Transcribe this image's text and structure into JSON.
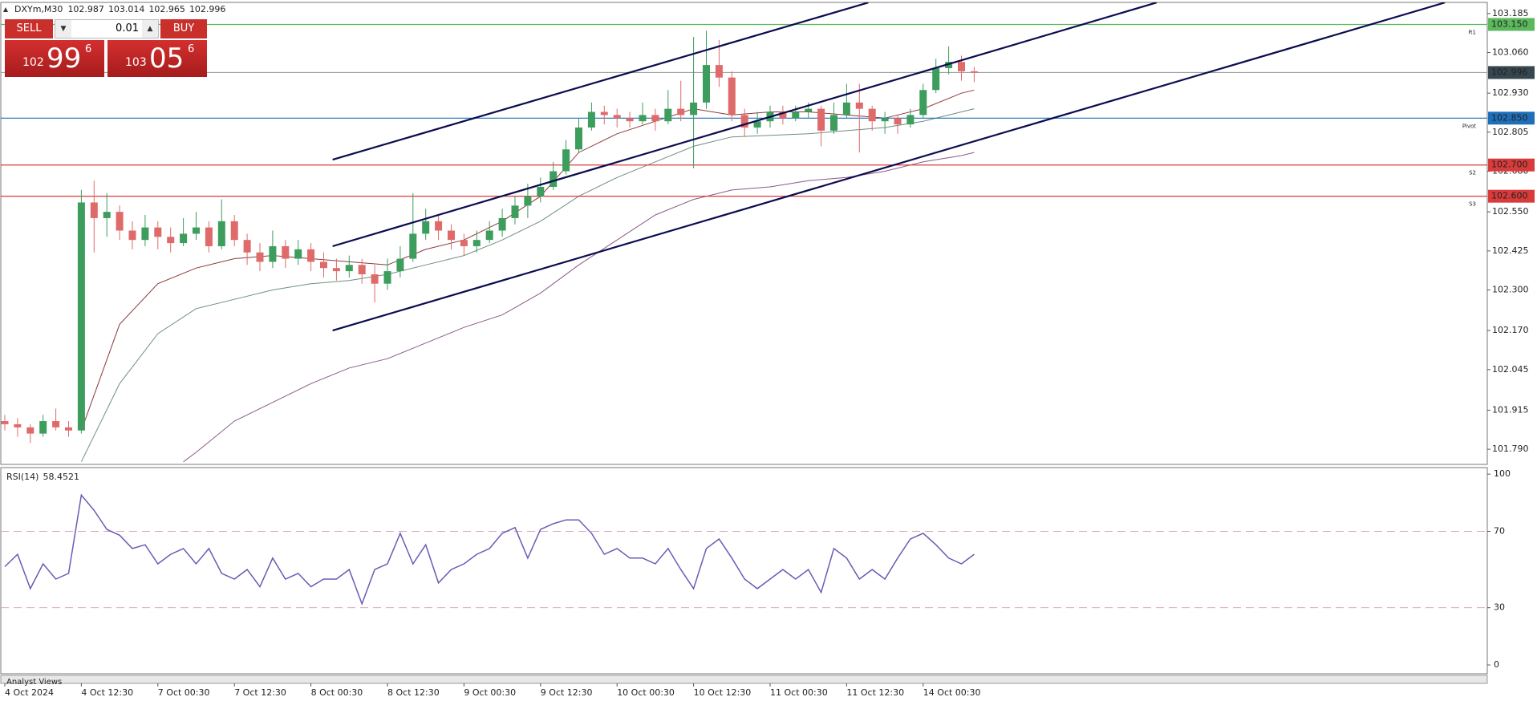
{
  "chart_data": [
    {
      "type": "candlestick",
      "title": "DXYm,M30",
      "header_values": [
        102.987,
        103.014,
        102.965,
        102.996
      ],
      "categories": [
        "4 Oct 2024",
        null,
        null,
        null,
        null,
        null,
        "4 Oct 12:30",
        null,
        null,
        null,
        null,
        null,
        "7 Oct 00:30",
        null,
        null,
        null,
        null,
        null,
        "7 Oct 12:30",
        null,
        null,
        null,
        null,
        null,
        "8 Oct 00:30",
        null,
        null,
        null,
        null,
        null,
        "8 Oct 12:30",
        null,
        null,
        null,
        null,
        null,
        "9 Oct 00:30",
        null,
        null,
        null,
        null,
        null,
        "9 Oct 12:30",
        null,
        null,
        null,
        null,
        null,
        "10 Oct 00:30",
        null,
        null,
        null,
        null,
        null,
        "10 Oct 12:30",
        null,
        null,
        null,
        null,
        null,
        "11 Oct 00:30",
        null,
        null,
        null,
        null,
        null,
        "11 Oct 12:30",
        null,
        null,
        null,
        null,
        null,
        "14 Oct 00:30",
        null,
        null,
        null,
        null
      ],
      "candles": [
        [
          101.88,
          101.9,
          101.85,
          101.87
        ],
        [
          101.87,
          101.89,
          101.83,
          101.86
        ],
        [
          101.86,
          101.87,
          101.81,
          101.84
        ],
        [
          101.84,
          101.9,
          101.83,
          101.88
        ],
        [
          101.88,
          101.92,
          101.85,
          101.86
        ],
        [
          101.86,
          101.88,
          101.83,
          101.85
        ],
        [
          101.85,
          102.62,
          101.84,
          102.58
        ],
        [
          102.58,
          102.65,
          102.42,
          102.53
        ],
        [
          102.53,
          102.61,
          102.47,
          102.55
        ],
        [
          102.55,
          102.57,
          102.46,
          102.49
        ],
        [
          102.49,
          102.52,
          102.43,
          102.46
        ],
        [
          102.46,
          102.54,
          102.44,
          102.5
        ],
        [
          102.5,
          102.52,
          102.43,
          102.47
        ],
        [
          102.47,
          102.5,
          102.42,
          102.45
        ],
        [
          102.45,
          102.53,
          102.44,
          102.48
        ],
        [
          102.48,
          102.55,
          102.46,
          102.5
        ],
        [
          102.5,
          102.52,
          102.42,
          102.44
        ],
        [
          102.44,
          102.59,
          102.43,
          102.52
        ],
        [
          102.52,
          102.54,
          102.44,
          102.46
        ],
        [
          102.46,
          102.48,
          102.38,
          102.42
        ],
        [
          102.42,
          102.45,
          102.36,
          102.39
        ],
        [
          102.39,
          102.49,
          102.37,
          102.44
        ],
        [
          102.44,
          102.46,
          102.37,
          102.4
        ],
        [
          102.4,
          102.46,
          102.38,
          102.43
        ],
        [
          102.43,
          102.45,
          102.36,
          102.39
        ],
        [
          102.39,
          102.42,
          102.34,
          102.37
        ],
        [
          102.37,
          102.4,
          102.33,
          102.36
        ],
        [
          102.36,
          102.41,
          102.34,
          102.38
        ],
        [
          102.38,
          102.4,
          102.32,
          102.35
        ],
        [
          102.35,
          102.38,
          102.26,
          102.32
        ],
        [
          102.32,
          102.4,
          102.3,
          102.36
        ],
        [
          102.36,
          102.44,
          102.34,
          102.4
        ],
        [
          102.4,
          102.61,
          102.39,
          102.48
        ],
        [
          102.48,
          102.56,
          102.46,
          102.52
        ],
        [
          102.52,
          102.54,
          102.46,
          102.49
        ],
        [
          102.49,
          102.51,
          102.43,
          102.46
        ],
        [
          102.46,
          102.48,
          102.41,
          102.44
        ],
        [
          102.44,
          102.49,
          102.42,
          102.46
        ],
        [
          102.46,
          102.52,
          102.45,
          102.49
        ],
        [
          102.49,
          102.56,
          102.47,
          102.53
        ],
        [
          102.53,
          102.6,
          102.51,
          102.57
        ],
        [
          102.57,
          102.64,
          102.53,
          102.6
        ],
        [
          102.6,
          102.66,
          102.58,
          102.63
        ],
        [
          102.63,
          102.71,
          102.62,
          102.68
        ],
        [
          102.68,
          102.78,
          102.67,
          102.75
        ],
        [
          102.75,
          102.85,
          102.74,
          102.82
        ],
        [
          102.82,
          102.9,
          102.81,
          102.87
        ],
        [
          102.87,
          102.89,
          102.83,
          102.86
        ],
        [
          102.86,
          102.88,
          102.82,
          102.85
        ],
        [
          102.85,
          102.87,
          102.82,
          102.84
        ],
        [
          102.84,
          102.9,
          102.83,
          102.86
        ],
        [
          102.86,
          102.88,
          102.81,
          102.84
        ],
        [
          102.84,
          102.94,
          102.83,
          102.88
        ],
        [
          102.88,
          102.97,
          102.84,
          102.86
        ],
        [
          102.86,
          103.11,
          102.69,
          102.9
        ],
        [
          102.9,
          103.13,
          102.88,
          103.02
        ],
        [
          103.02,
          103.1,
          102.95,
          102.98
        ],
        [
          102.98,
          103.0,
          102.84,
          102.86
        ],
        [
          102.86,
          102.88,
          102.79,
          102.82
        ],
        [
          102.82,
          102.87,
          102.8,
          102.84
        ],
        [
          102.84,
          102.89,
          102.82,
          102.87
        ],
        [
          102.87,
          102.89,
          102.83,
          102.85
        ],
        [
          102.85,
          102.89,
          102.84,
          102.87
        ],
        [
          102.87,
          102.9,
          102.85,
          102.88
        ],
        [
          102.88,
          102.89,
          102.76,
          102.81
        ],
        [
          102.81,
          102.9,
          102.8,
          102.86
        ],
        [
          102.86,
          102.96,
          102.85,
          102.9
        ],
        [
          102.9,
          102.96,
          102.74,
          102.88
        ],
        [
          102.88,
          102.89,
          102.81,
          102.84
        ],
        [
          102.84,
          102.87,
          102.8,
          102.85
        ],
        [
          102.85,
          102.86,
          102.8,
          102.83
        ],
        [
          102.83,
          102.88,
          102.82,
          102.86
        ],
        [
          102.86,
          102.96,
          102.85,
          102.94
        ],
        [
          102.94,
          103.04,
          102.93,
          103.01
        ],
        [
          103.01,
          103.08,
          102.99,
          103.03
        ],
        [
          103.03,
          103.05,
          102.97,
          103.0
        ],
        [
          103.0,
          103.014,
          102.965,
          102.996
        ]
      ],
      "up_color": "#3c9d5d",
      "down_color": "#df6a6a",
      "ylim": [
        101.744,
        103.218
      ],
      "yticks": [
        103.185,
        {
          "value": 103.06,
          "label": "103.060"
        },
        {
          "value": 102.93,
          "label": "102.930"
        },
        102.805,
        {
          "value": 102.68,
          "label": "102.680"
        },
        {
          "value": 102.55,
          "label": "102.550"
        },
        102.425,
        {
          "value": 102.3,
          "label": "102.300"
        },
        {
          "value": 102.17,
          "label": "102.170"
        },
        102.045,
        101.915,
        {
          "value": 101.79,
          "label": "101.790"
        }
      ],
      "series": [
        {
          "color": "#8b3a3a",
          "x": [
            6,
            9,
            12,
            15,
            18,
            21,
            24,
            27,
            30,
            33,
            36,
            39,
            42,
            45,
            48,
            51,
            54,
            57,
            60,
            63,
            66,
            69,
            72,
            75,
            76
          ],
          "values": [
            101.85,
            102.19,
            102.32,
            102.37,
            102.4,
            102.41,
            102.4,
            102.39,
            102.38,
            102.43,
            102.46,
            102.52,
            102.6,
            102.74,
            102.8,
            102.84,
            102.88,
            102.86,
            102.87,
            102.87,
            102.86,
            102.85,
            102.88,
            102.93,
            102.94
          ]
        },
        {
          "color": "#6f8f7f",
          "x": [
            6,
            9,
            12,
            15,
            18,
            21,
            24,
            27,
            30,
            33,
            36,
            39,
            42,
            45,
            48,
            51,
            54,
            57,
            60,
            63,
            66,
            69,
            72,
            75,
            76
          ],
          "values": [
            101.75,
            102.0,
            102.16,
            102.24,
            102.27,
            102.3,
            102.32,
            102.33,
            102.35,
            102.38,
            102.41,
            102.46,
            102.52,
            102.6,
            102.66,
            102.71,
            102.76,
            102.79,
            102.795,
            102.8,
            102.81,
            102.82,
            102.84,
            102.87,
            102.88
          ]
        },
        {
          "color": "#8a5a8a",
          "x": [
            14,
            15,
            18,
            21,
            24,
            27,
            30,
            33,
            36,
            39,
            42,
            45,
            48,
            51,
            54,
            57,
            60,
            63,
            66,
            69,
            72,
            75,
            76
          ],
          "values": [
            101.75,
            101.78,
            101.88,
            101.94,
            102.0,
            102.05,
            102.08,
            102.13,
            102.18,
            102.22,
            102.29,
            102.38,
            102.46,
            102.54,
            102.59,
            102.62,
            102.63,
            102.65,
            102.66,
            102.68,
            102.71,
            102.73,
            102.74
          ]
        }
      ],
      "trendlines": [
        {
          "color": "#0b0b4f",
          "x": [
            25.7,
            67.7
          ],
          "values": [
            102.717,
            103.22
          ]
        },
        {
          "color": "#0b0b4f",
          "x": [
            25.7,
            90.3
          ],
          "values": [
            102.44,
            103.22
          ]
        },
        {
          "color": "#0b0b4f",
          "x": [
            25.7,
            112.9
          ],
          "values": [
            102.17,
            103.22
          ]
        }
      ],
      "levels": [
        {
          "value": 103.15,
          "label": "103.150",
          "tag": "R1",
          "color": "#5cb85c"
        },
        {
          "value": 102.996,
          "color": "#9e9e9e",
          "box": "#37474f"
        },
        {
          "value": 102.85,
          "label": "102.850",
          "tag": "Pivot",
          "color": "#1e6fb8"
        },
        {
          "value": 102.7,
          "label": "102.700",
          "tag": "S2",
          "color": "#d93b3b"
        },
        {
          "value": 102.6,
          "label": "102.600",
          "tag": "S3",
          "color": "#d93b3b"
        }
      ]
    },
    {
      "type": "line",
      "title": "RSI(14)",
      "current": 58.4521,
      "color": "#6b5bb5",
      "values": [
        51.5,
        58,
        40,
        53,
        45,
        48,
        89,
        81,
        71,
        68,
        61,
        63,
        53,
        58,
        61,
        53,
        61,
        48,
        45,
        50,
        41,
        56,
        45,
        48,
        41,
        45,
        45,
        50,
        32,
        50,
        53,
        69,
        53,
        63,
        43,
        50,
        53,
        58,
        61,
        69,
        72,
        56,
        71,
        74,
        76,
        76,
        69,
        58,
        61,
        56,
        56,
        53,
        61,
        50,
        40,
        61,
        66,
        56,
        45,
        40,
        45,
        50,
        45,
        50,
        38,
        61,
        56,
        45,
        50,
        45,
        56,
        66,
        69,
        63,
        56,
        53,
        58
      ],
      "ylim": [
        -4.6,
        103
      ],
      "yticks": [
        100,
        70,
        30,
        0
      ],
      "levels": [
        70,
        30
      ]
    }
  ],
  "trade_panel": {
    "sell": "SELL",
    "buy": "BUY",
    "lot": "0.01",
    "bid": [
      "102",
      "99",
      "6"
    ],
    "ask": [
      "103",
      "05",
      "6"
    ]
  },
  "tab": "Analyst Views"
}
